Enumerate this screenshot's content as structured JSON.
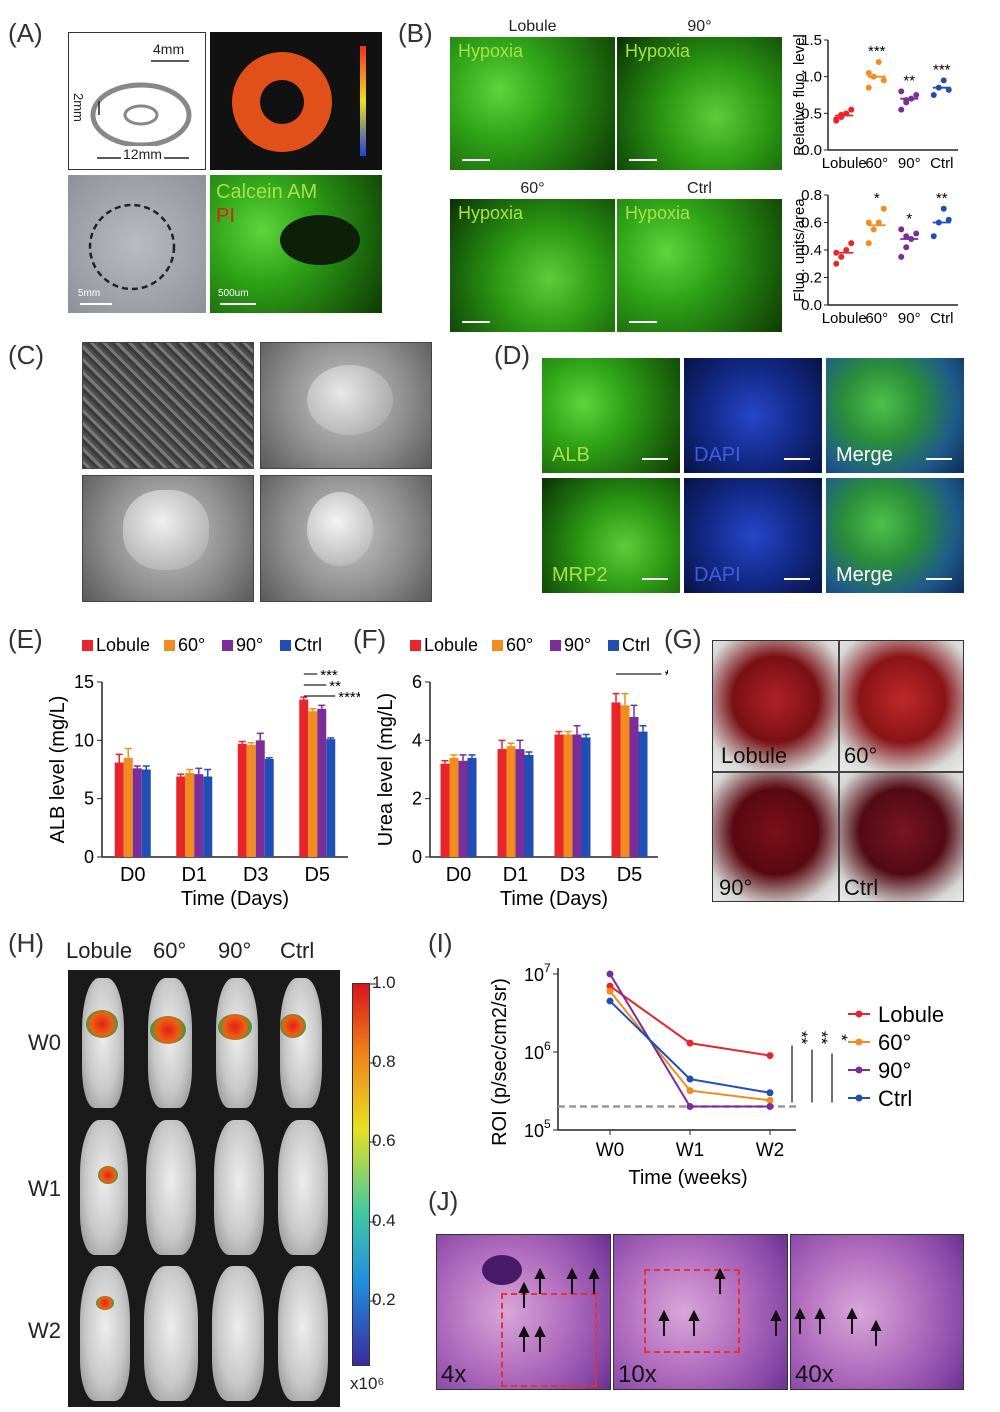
{
  "panels": {
    "A": {
      "label": "(A)",
      "dim_4mm": "4mm",
      "dim_2mm": "2mm",
      "dim_12mm": "12mm",
      "stain_1": "Calcein AM",
      "stain_2": "PI",
      "scale_5mm": "5mm",
      "scale_500um": "500um"
    },
    "B": {
      "label": "(B)",
      "images": [
        {
          "title": "Lobule",
          "text": "Hypoxia"
        },
        {
          "title": "90°",
          "text": "Hypoxia"
        },
        {
          "title": "60°",
          "text": "Hypoxia"
        },
        {
          "title": "Ctrl",
          "text": "Hypoxia"
        }
      ]
    },
    "C": {
      "label": "(C)"
    },
    "D": {
      "label": "(D)",
      "row1": [
        "ALB",
        "DAPI",
        "Merge"
      ],
      "row2": [
        "MRP2",
        "DAPI",
        "Merge"
      ]
    },
    "E": {
      "label": "(E)"
    },
    "F": {
      "label": "(F)"
    },
    "G": {
      "label": "(G)",
      "images": [
        "Lobule",
        "60°",
        "90°",
        "Ctrl"
      ]
    },
    "H": {
      "label": "(H)",
      "columns": [
        "Lobule",
        "60°",
        "90°",
        "Ctrl"
      ],
      "rows": [
        "W0",
        "W1",
        "W2"
      ],
      "colorbar_ticks": [
        "1.0",
        "0.8",
        "0.6",
        "0.4",
        "0.2"
      ],
      "colorbar_unit": "x10⁶"
    },
    "I": {
      "label": "(I)"
    },
    "J": {
      "label": "(J)",
      "mags": [
        "4x",
        "10x",
        "40x"
      ]
    }
  },
  "colors": {
    "Lobule": "#e8252a",
    "60°": "#f28c1e",
    "90°": "#7b2d9a",
    "Ctrl": "#1f4eb4"
  },
  "chart_data": [
    {
      "id": "B-top",
      "type": "scatter",
      "categories": [
        "Lobule",
        "60°",
        "90°",
        "Ctrl"
      ],
      "ylabel": "Relative fluo. level",
      "ylim": [
        0,
        1.5
      ],
      "yticks": [
        "0.0",
        "0.5",
        "1.0",
        "1.5"
      ],
      "means": [
        0.47,
        1.0,
        0.7,
        0.85
      ],
      "points": [
        [
          0.4,
          0.45,
          0.5,
          0.55,
          0.42,
          0.48
        ],
        [
          0.85,
          1.0,
          1.2,
          0.95,
          1.05
        ],
        [
          0.55,
          0.65,
          0.7,
          0.75,
          0.8,
          0.68
        ],
        [
          0.75,
          0.85,
          0.95,
          0.82
        ]
      ],
      "significance": [
        "",
        "***",
        "**",
        "***"
      ]
    },
    {
      "id": "B-bottom",
      "type": "scatter",
      "categories": [
        "Lobule",
        "60°",
        "90°",
        "Ctrl"
      ],
      "ylabel": "Fluo. units/area",
      "ylim": [
        0,
        0.8
      ],
      "yticks": [
        "0.0",
        "0.2",
        "0.4",
        "0.6",
        "0.8"
      ],
      "means": [
        0.38,
        0.58,
        0.48,
        0.6
      ],
      "points": [
        [
          0.3,
          0.35,
          0.4,
          0.45,
          0.38
        ],
        [
          0.45,
          0.55,
          0.6,
          0.7,
          0.6
        ],
        [
          0.35,
          0.42,
          0.48,
          0.52,
          0.55,
          0.5
        ],
        [
          0.5,
          0.6,
          0.7,
          0.62
        ]
      ],
      "significance": [
        "",
        "*",
        "*",
        "**"
      ]
    },
    {
      "id": "E",
      "type": "bar",
      "categories": [
        "D0",
        "D1",
        "D3",
        "D5"
      ],
      "series": [
        {
          "name": "Lobule",
          "values": [
            8.1,
            6.9,
            9.7,
            13.5
          ],
          "err": [
            0.7,
            0.2,
            0.2,
            0.2
          ]
        },
        {
          "name": "60°",
          "values": [
            8.5,
            7.2,
            9.6,
            12.5
          ],
          "err": [
            0.8,
            0.3,
            0.2,
            0.2
          ]
        },
        {
          "name": "90°",
          "values": [
            7.6,
            7.1,
            10.0,
            12.7
          ],
          "err": [
            0.2,
            0.5,
            0.6,
            0.3
          ]
        },
        {
          "name": "Ctrl",
          "values": [
            7.5,
            6.9,
            8.4,
            10.1
          ],
          "err": [
            0.3,
            0.6,
            0.1,
            0.1
          ]
        }
      ],
      "xlabel": "Time (Days)",
      "ylabel": "ALB level (mg/L)",
      "ylim": [
        0,
        15
      ],
      "yticks": [
        "0",
        "5",
        "10",
        "15"
      ],
      "significance": [
        "***",
        "**",
        "****"
      ]
    },
    {
      "id": "F",
      "type": "bar",
      "categories": [
        "D0",
        "D1",
        "D3",
        "D5"
      ],
      "series": [
        {
          "name": "Lobule",
          "values": [
            3.2,
            3.7,
            4.2,
            5.3
          ],
          "err": [
            0.1,
            0.3,
            0.1,
            0.3
          ]
        },
        {
          "name": "60°",
          "values": [
            3.4,
            3.8,
            4.2,
            5.2
          ],
          "err": [
            0.1,
            0.1,
            0.1,
            0.4
          ]
        },
        {
          "name": "90°",
          "values": [
            3.3,
            3.7,
            4.2,
            4.8
          ],
          "err": [
            0.2,
            0.3,
            0.3,
            0.4
          ]
        },
        {
          "name": "Ctrl",
          "values": [
            3.4,
            3.5,
            4.1,
            4.3
          ],
          "err": [
            0.1,
            0.1,
            0.1,
            0.2
          ]
        }
      ],
      "xlabel": "Time (Days)",
      "ylabel": "Urea level (mg/L)",
      "ylim": [
        0,
        6
      ],
      "yticks": [
        "0",
        "2",
        "4",
        "6"
      ],
      "significance": [
        "***"
      ]
    },
    {
      "id": "I",
      "type": "line",
      "x": [
        "W0",
        "W1",
        "W2"
      ],
      "series": [
        {
          "name": "Lobule",
          "values": [
            7000000,
            1300000,
            900000
          ]
        },
        {
          "name": "60°",
          "values": [
            6000000,
            320000,
            240000
          ]
        },
        {
          "name": "90°",
          "values": [
            10000000,
            200000,
            200000
          ]
        },
        {
          "name": "Ctrl",
          "values": [
            4500000,
            450000,
            300000
          ]
        }
      ],
      "baseline": 200000,
      "xlabel": "Time (weeks)",
      "ylabel": "ROI (p/sec/cm2/sr)",
      "yscale": "log",
      "ylim": [
        100000,
        10000000
      ],
      "significance": [
        "**",
        "**",
        "*"
      ]
    }
  ]
}
